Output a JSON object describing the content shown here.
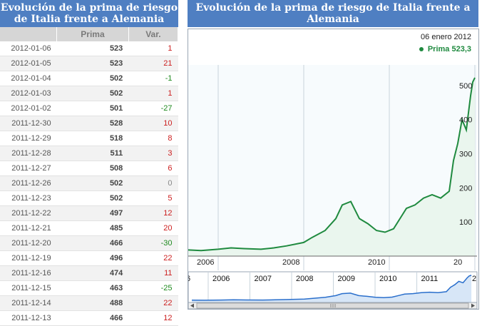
{
  "left_title": "Evolución de la prima de riesgo de Italia frente a Alemania",
  "right_title": "Evolución de la prima de riesgo de Italia frente a Alemania",
  "table": {
    "headers": [
      "",
      "Prima",
      "Var."
    ],
    "rows": [
      {
        "date": "2012-01-06",
        "prima": "523",
        "var": "1"
      },
      {
        "date": "2012-01-05",
        "prima": "523",
        "var": "21"
      },
      {
        "date": "2012-01-04",
        "prima": "502",
        "var": "-1"
      },
      {
        "date": "2012-01-03",
        "prima": "502",
        "var": "1"
      },
      {
        "date": "2012-01-02",
        "prima": "501",
        "var": "-27"
      },
      {
        "date": "2011-12-30",
        "prima": "528",
        "var": "10"
      },
      {
        "date": "2011-12-29",
        "prima": "518",
        "var": "8"
      },
      {
        "date": "2011-12-28",
        "prima": "511",
        "var": "3"
      },
      {
        "date": "2011-12-27",
        "prima": "508",
        "var": "6"
      },
      {
        "date": "2011-12-26",
        "prima": "502",
        "var": "0"
      },
      {
        "date": "2011-12-23",
        "prima": "502",
        "var": "5"
      },
      {
        "date": "2011-12-22",
        "prima": "497",
        "var": "12"
      },
      {
        "date": "2011-12-21",
        "prima": "485",
        "var": "20"
      },
      {
        "date": "2011-12-20",
        "prima": "466",
        "var": "-30"
      },
      {
        "date": "2011-12-19",
        "prima": "496",
        "var": "22"
      },
      {
        "date": "2011-12-16",
        "prima": "474",
        "var": "11"
      },
      {
        "date": "2011-12-15",
        "prima": "463",
        "var": "-25"
      },
      {
        "date": "2011-12-14",
        "prima": "488",
        "var": "22"
      },
      {
        "date": "2011-12-13",
        "prima": "466",
        "var": "12"
      }
    ]
  },
  "chart_data": {
    "type": "line",
    "legend_date": "06 enero 2012",
    "legend_series": "Prima 523,3",
    "series_color": "#1f8a3f",
    "nav_color": "#2a6fcc",
    "x_ticks": [
      "2006",
      "2008",
      "2010",
      "20"
    ],
    "y_ticks": [
      100,
      200,
      300,
      400,
      500
    ],
    "ylim": [
      0,
      550
    ],
    "nav_labels": [
      "2006",
      "2007",
      "2008",
      "2009",
      "2010",
      "2011"
    ],
    "nav_label_edge_left": "6",
    "nav_label_edge_right": "2",
    "x": [
      2005.3,
      2005.6,
      2006.0,
      2006.3,
      2006.6,
      2007.0,
      2007.3,
      2007.6,
      2008.0,
      2008.2,
      2008.5,
      2008.75,
      2008.9,
      2009.1,
      2009.3,
      2009.5,
      2009.7,
      2009.9,
      2010.1,
      2010.3,
      2010.4,
      2010.6,
      2010.8,
      2011.0,
      2011.2,
      2011.4,
      2011.5,
      2011.6,
      2011.7,
      2011.8,
      2011.9,
      2011.95,
      2012.0
    ],
    "values": [
      18,
      16,
      20,
      24,
      22,
      20,
      24,
      30,
      40,
      55,
      75,
      110,
      150,
      160,
      110,
      95,
      75,
      70,
      80,
      120,
      140,
      150,
      170,
      180,
      170,
      190,
      280,
      330,
      400,
      370,
      470,
      510,
      523
    ]
  }
}
